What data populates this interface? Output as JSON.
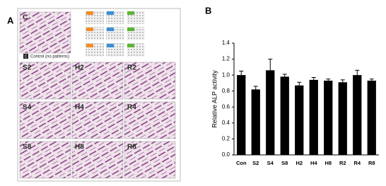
{
  "figure": {
    "panel_a_label": "A",
    "panel_b_label": "B",
    "control_tag": "C",
    "control_caption": "Control (no patterns)",
    "image_labels": [
      "C",
      "S2",
      "H2",
      "R2",
      "S4",
      "H4",
      "R4",
      "S8",
      "H8",
      "R8"
    ]
  },
  "chart_data": {
    "type": "bar",
    "y_label": "Relative ALP activity",
    "categories": [
      "Con",
      "S2",
      "S4",
      "S8",
      "H2",
      "H4",
      "H8",
      "R2",
      "R4",
      "R8"
    ],
    "values": [
      1.0,
      0.82,
      1.06,
      0.98,
      0.87,
      0.94,
      0.93,
      0.91,
      1.0,
      0.93
    ],
    "errors": [
      0.05,
      0.04,
      0.14,
      0.03,
      0.04,
      0.03,
      0.02,
      0.03,
      0.06,
      0.02
    ],
    "color": "#000000",
    "ylim": [
      0,
      1.4
    ],
    "yticks": [
      {
        "value": 0,
        "label": "0.0"
      },
      {
        "value": 0.2,
        "label": "0.2"
      },
      {
        "value": 0.4,
        "label": "0.4"
      },
      {
        "value": 0.6,
        "label": "0.6"
      },
      {
        "value": 0.8,
        "label": "0.8"
      },
      {
        "value": 1.0,
        "label": "1.0"
      },
      {
        "value": 1.2,
        "label": "1.2"
      },
      {
        "value": 1.4,
        "label": "1.4"
      }
    ]
  }
}
